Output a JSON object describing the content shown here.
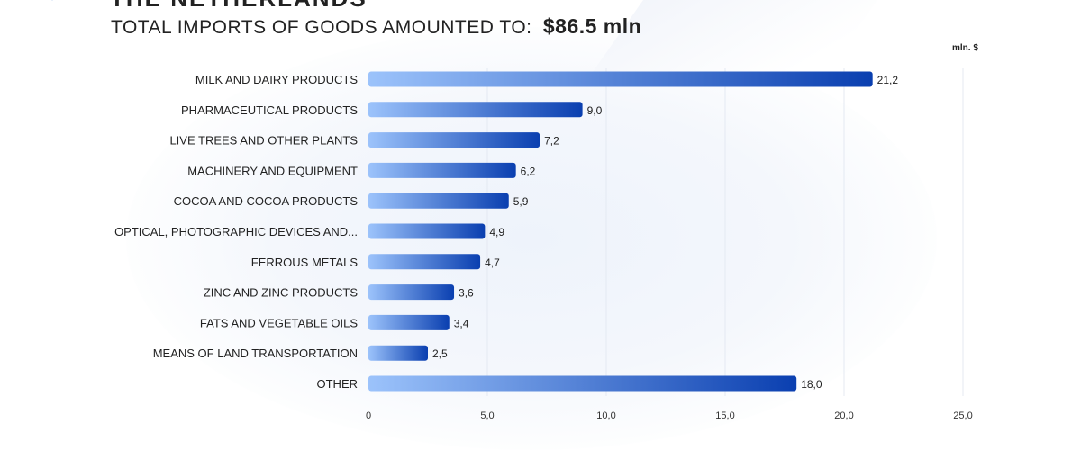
{
  "header": {
    "country": "THE NETHERLANDS",
    "subtitle": "TOTAL IMPORTS OF GOODS AMOUNTED TO:",
    "total": "$86.5  mln",
    "unit": "mln. $"
  },
  "colors": {
    "bar_start": "#9cc3fb",
    "bar_end": "#0a3fb0",
    "grid": "#e4e9f2"
  },
  "chart_data": {
    "type": "bar",
    "orientation": "horizontal",
    "categories": [
      "MILK AND DAIRY PRODUCTS",
      "PHARMACEUTICAL PRODUCTS",
      "LIVE TREES AND OTHER PLANTS",
      "MACHINERY AND EQUIPMENT",
      "COCOA AND COCOA PRODUCTS",
      "OPTICAL, PHOTOGRAPHIC DEVICES AND...",
      "FERROUS METALS",
      "ZINC AND ZINC PRODUCTS",
      "FATS AND VEGETABLE OILS",
      "MEANS OF LAND TRANSPORTATION",
      "OTHER"
    ],
    "values": [
      21.2,
      9.0,
      7.2,
      6.2,
      5.9,
      4.9,
      4.7,
      3.6,
      3.4,
      2.5,
      18.0
    ],
    "value_labels": [
      "21,2",
      "9,0",
      "7,2",
      "6,2",
      "5,9",
      "4,9",
      "4,7",
      "3,6",
      "3,4",
      "2,5",
      "18,0"
    ],
    "xlim": [
      0,
      25
    ],
    "xticks": [
      0,
      5,
      10,
      15,
      20,
      25
    ],
    "xtick_labels": [
      "0",
      "5,0",
      "10,0",
      "15,0",
      "20,0",
      "25,0"
    ],
    "grid": true
  }
}
